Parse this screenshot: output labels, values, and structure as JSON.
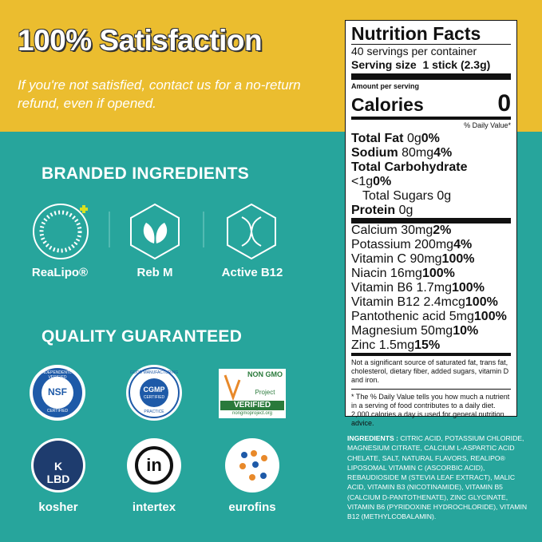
{
  "header": {
    "title": "100% Satisfaction",
    "text": "If you're not satisfied, contact us for a no-return refund, even if opened."
  },
  "branded": {
    "heading": "BRANDED INGREDIENTS",
    "items": [
      "ReaLipo®",
      "Reb M",
      "Active B12"
    ]
  },
  "quality": {
    "heading": "QUALITY GUARANTEED",
    "badges": [
      {
        "top": "INDEPENDENTLY VERIFIED",
        "center": "NSF",
        "bottom": "CERTIFIED"
      },
      {
        "top": "GOOD MANUFACTURING",
        "center": "CGMP",
        "sub": "CERTIFIED",
        "bottom": "PRACTICE"
      },
      {
        "top": "NON GMO",
        "center": "Project",
        "sub": "VERIFIED",
        "bottom": "nongmoproject.org"
      }
    ],
    "logos": [
      {
        "mark": "K LBD",
        "label": "kosher"
      },
      {
        "mark": "in",
        "label": "intertex"
      },
      {
        "label": "eurofins"
      }
    ]
  },
  "nutrition": {
    "title": "Nutrition Facts",
    "servings": "40 servings per container",
    "serving_size_label": "Serving size",
    "serving_size": "1 stick (2.3g)",
    "amount_per_serving": "Amount per serving",
    "calories_label": "Calories",
    "calories": "0",
    "dv_header": "% Daily Value*",
    "macros": [
      {
        "name": "Total Fat",
        "amount": "0g",
        "dv": "0%"
      },
      {
        "name": "Sodium",
        "amount": "80mg",
        "dv": "4%"
      },
      {
        "name": "Total Carbohydrate",
        "amount": "<1g",
        "dv": "0%"
      },
      {
        "name": "Total Sugars",
        "amount": "0g"
      },
      {
        "name": "Protein",
        "amount": "0g"
      }
    ],
    "micros": [
      {
        "name": "Calcium",
        "amount": "30mg",
        "dv": "2%"
      },
      {
        "name": "Potassium",
        "amount": "200mg",
        "dv": "4%"
      },
      {
        "name": "Vitamin C",
        "amount": "90mg",
        "dv": "100%"
      },
      {
        "name": "Niacin",
        "amount": "16mg",
        "dv": "100%"
      },
      {
        "name": "Vitamin B6",
        "amount": "1.7mg",
        "dv": "100%"
      },
      {
        "name": "Vitamin B12",
        "amount": "2.4mcg",
        "dv": "100%"
      },
      {
        "name": "Pantothenic acid",
        "amount": "5mg",
        "dv": "100%"
      },
      {
        "name": "Magnesium",
        "amount": "50mg",
        "dv": "10%"
      },
      {
        "name": "Zinc",
        "amount": "1.5mg",
        "dv": "15%"
      }
    ],
    "footnote": "Not a significant source of saturated fat, trans fat, cholesterol, dietary fiber, added sugars, vitamin D and iron.",
    "daily_value_note": "* The % Daily Value tells you how much a nutrient in a serving of food contributes to a daily diet. 2,000 calories a day is used for general nutrition advice."
  },
  "ingredients": {
    "label": "INGREDIENTS :",
    "text": "CITRIC ACID, POTASSIUM CHLORIDE, MAGNESIUM CITRATE, CALCIUM L-ASPARTIC ACID CHELATE, SALT, NATURAL FLAVORS, REALIPO® LIPOSOMAL VITAMIN C (ASCORBIC ACID), REBAUDIOSIDE M (STEVIA LEAF EXTRACT), MALIC ACID, VITAMIN B3 (NICOTINAMIDE), VITAMIN B5 (CALCIUM D-PANTOTHENATE), ZINC GLYCINATE, VITAMIN B6 (PYRIDOXINE HYDROCHLORIDE), VITAMIN B12 (METHYLCOBALAMIN)."
  }
}
